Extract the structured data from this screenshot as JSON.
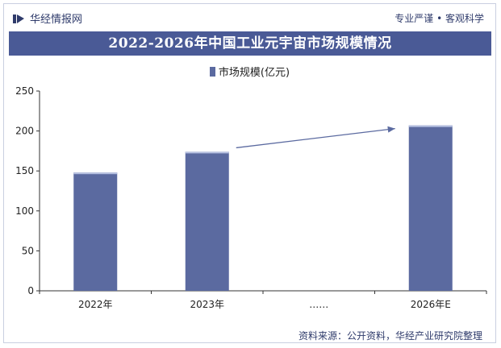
{
  "header": {
    "brand": "华经情报网",
    "slogan": "专业严谨 • 客观科学"
  },
  "colors": {
    "bar": "#5b6aa0",
    "bar_top": "#b8c2e2",
    "title_band": "#4a5a96",
    "arrow": "#5b6aa0",
    "axis": "#333333"
  },
  "chart_data": {
    "type": "bar",
    "title": "2022-2026年中国工业元宇宙市场规模情况",
    "categories": [
      "2022年",
      "2023年",
      "……",
      "2026年E"
    ],
    "series": [
      {
        "name": "市场规模(亿元)",
        "values": [
          148,
          174,
          null,
          207
        ]
      }
    ],
    "ylim": [
      0,
      250
    ],
    "yticks": [
      0,
      50,
      100,
      150,
      200,
      250
    ],
    "grid": false,
    "legend": "top-center",
    "annotations": [
      "upward trend arrow between 2023年 and 2026年E"
    ]
  },
  "footer": {
    "source": "资料来源：公开资料，华经产业研究院整理"
  }
}
